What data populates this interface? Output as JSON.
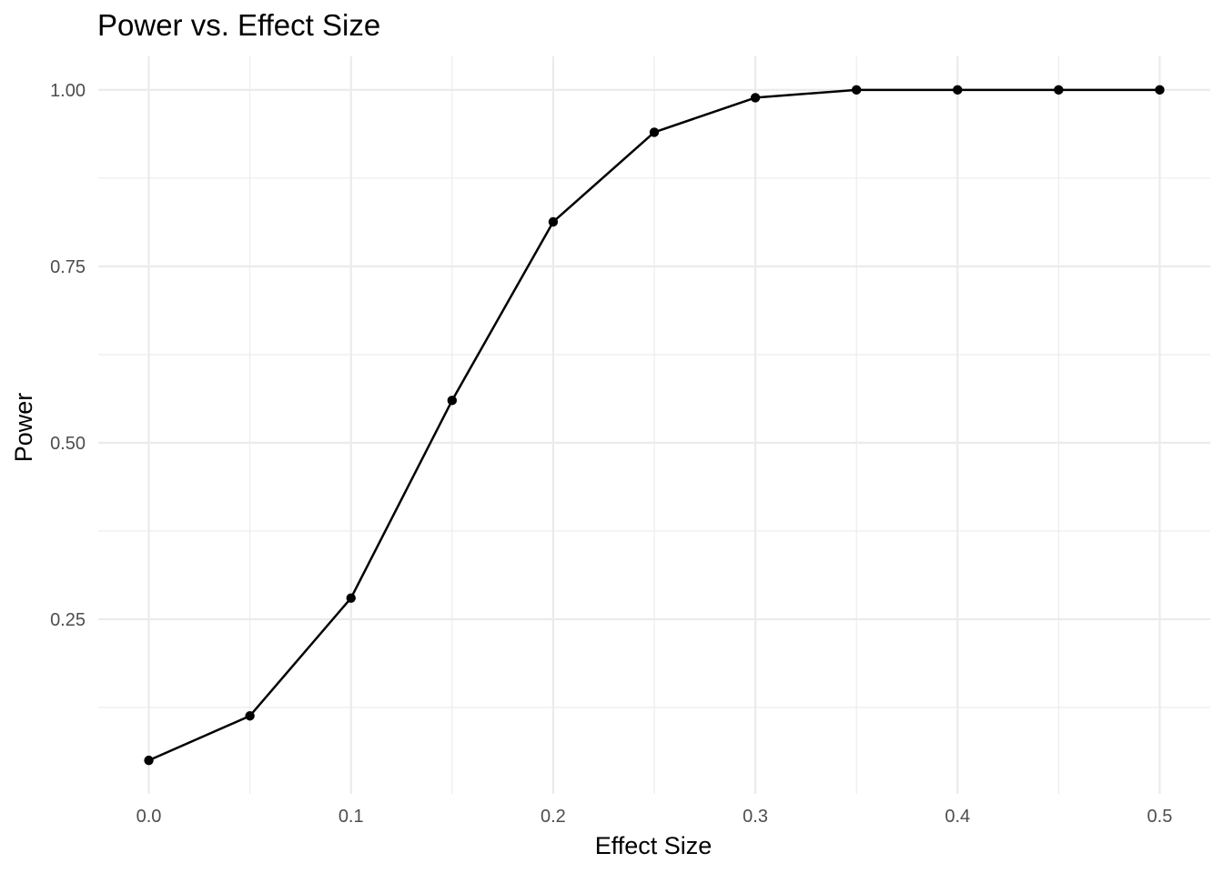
{
  "chart_data": {
    "type": "line",
    "title": "Power vs. Effect Size",
    "xlabel": "Effect Size",
    "ylabel": "Power",
    "x": [
      0.0,
      0.05,
      0.1,
      0.15,
      0.2,
      0.25,
      0.3,
      0.35,
      0.4,
      0.45,
      0.5
    ],
    "series": [
      {
        "values": [
          0.05,
          0.113,
          0.28,
          0.56,
          0.813,
          0.94,
          0.989,
          1.0,
          1.0,
          1.0,
          1.0
        ]
      }
    ],
    "xticks": [
      0.0,
      0.1,
      0.2,
      0.3,
      0.4,
      0.5
    ],
    "xtick_labels": [
      "0.0",
      "0.1",
      "0.2",
      "0.3",
      "0.4",
      "0.5"
    ],
    "yticks": [
      0.25,
      0.5,
      0.75,
      1.0
    ],
    "ytick_labels": [
      "0.25",
      "0.50",
      "0.75",
      "1.00"
    ],
    "xlim": [
      -0.025,
      0.525
    ],
    "ylim": [
      0.0025,
      1.0475
    ],
    "grid": true,
    "markers": true,
    "line_color": "#000000",
    "grid_color": "#ebebeb"
  }
}
